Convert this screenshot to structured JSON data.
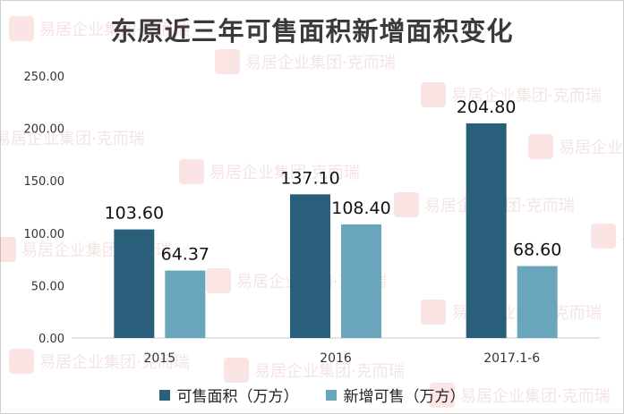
{
  "chart_data": {
    "type": "bar",
    "title": "东原近三年可售面积新增面积变化",
    "categories": [
      "2015",
      "2016",
      "2017.1-6"
    ],
    "series": [
      {
        "name": "可售面积（万方）",
        "values": [
          103.6,
          137.1,
          204.8
        ],
        "labels": [
          "103.60",
          "137.10",
          "204.80"
        ],
        "color": "#2a5f7c"
      },
      {
        "name": "新增可售（万方）",
        "values": [
          64.37,
          108.4,
          68.6
        ],
        "labels": [
          "64.37",
          "108.40",
          "68.60"
        ],
        "color": "#6aa6bb"
      }
    ],
    "ylim": [
      0,
      250
    ],
    "yticks": [
      "0.00",
      "50.00",
      "100.00",
      "150.00",
      "200.00",
      "250.00"
    ],
    "grid": false,
    "legend_position": "bottom"
  },
  "watermark": {
    "text": "易居企业集团·克而瑞",
    "seal": "克而瑞"
  }
}
